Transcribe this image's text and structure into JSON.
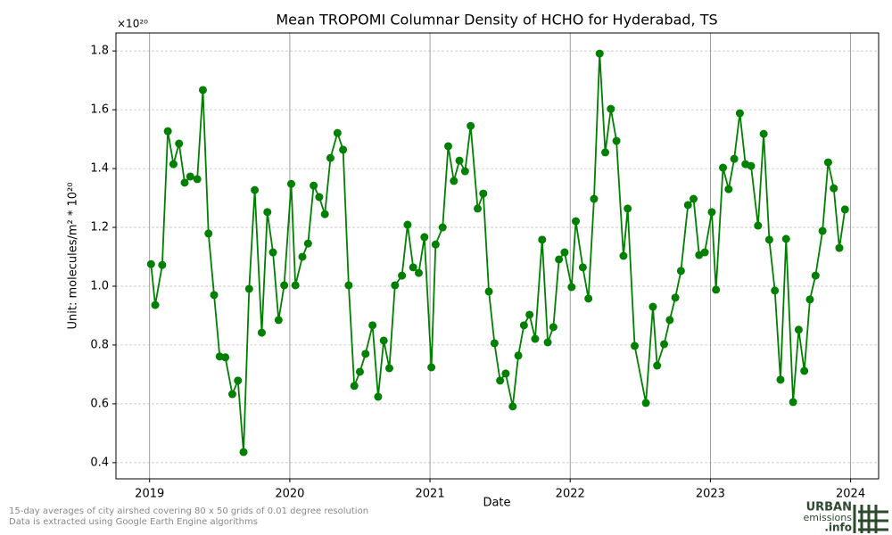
{
  "chart_data": {
    "type": "line",
    "title": "Mean TROPOMI Columnar Density of HCHO for Hyderabad, TS",
    "x_label": "Date",
    "y_label": "Unit: molecules/m² * 10²⁰",
    "y_offset_label": "×10²⁰",
    "footnote": [
      "15-day averages of city airshed covering 80 x 50 grids of 0.01 degree resolution",
      "Data is extracted using Google Earth Engine algorithms"
    ],
    "logo": [
      "URBAN",
      "emissions",
      ".info"
    ],
    "grid": true,
    "xlim": [
      2018.76,
      2024.2
    ],
    "xticks": [
      2019,
      2020,
      2021,
      2022,
      2023,
      2024
    ],
    "ylim": [
      0.345,
      1.861
    ],
    "yticks": [
      0.4,
      0.6,
      0.8,
      1.0,
      1.2,
      1.4,
      1.6,
      1.8
    ],
    "x": [
      2019.01,
      2019.04,
      2019.09,
      2019.13,
      2019.17,
      2019.21,
      2019.25,
      2019.29,
      2019.34,
      2019.38,
      2019.42,
      2019.46,
      2019.5,
      2019.54,
      2019.59,
      2019.63,
      2019.67,
      2019.71,
      2019.75,
      2019.8,
      2019.84,
      2019.88,
      2019.92,
      2019.96,
      2020.01,
      2020.04,
      2020.09,
      2020.13,
      2020.17,
      2020.21,
      2020.25,
      2020.29,
      2020.34,
      2020.38,
      2020.42,
      2020.46,
      2020.5,
      2020.54,
      2020.59,
      2020.63,
      2020.67,
      2020.71,
      2020.75,
      2020.8,
      2020.84,
      2020.88,
      2020.92,
      2020.96,
      2021.01,
      2021.04,
      2021.09,
      2021.13,
      2021.17,
      2021.21,
      2021.25,
      2021.29,
      2021.34,
      2021.38,
      2021.42,
      2021.46,
      2021.5,
      2021.54,
      2021.59,
      2021.63,
      2021.67,
      2021.71,
      2021.75,
      2021.8,
      2021.84,
      2021.88,
      2021.92,
      2021.96,
      2022.01,
      2022.04,
      2022.09,
      2022.13,
      2022.17,
      2022.21,
      2022.25,
      2022.29,
      2022.33,
      2022.38,
      2022.41,
      2022.46,
      2022.54,
      2022.59,
      2022.62,
      2022.67,
      2022.71,
      2022.75,
      2022.79,
      2022.84,
      2022.88,
      2022.92,
      2022.96,
      2023.01,
      2023.04,
      2023.09,
      2023.13,
      2023.17,
      2023.21,
      2023.25,
      2023.29,
      2023.34,
      2023.38,
      2023.42,
      2023.46,
      2023.5,
      2023.54,
      2023.59,
      2023.63,
      2023.67,
      2023.71,
      2023.75,
      2023.8,
      2023.84,
      2023.88,
      2023.92,
      2023.96
    ],
    "series": [
      {
        "name": "HCHO",
        "color": "#008000",
        "values": [
          1.075,
          0.936,
          1.072,
          1.527,
          1.415,
          1.485,
          1.352,
          1.373,
          1.364,
          1.667,
          1.179,
          0.97,
          0.761,
          0.758,
          0.633,
          0.679,
          0.436,
          0.991,
          1.327,
          0.842,
          1.252,
          1.115,
          0.885,
          1.003,
          1.348,
          1.003,
          1.1,
          1.145,
          1.342,
          1.303,
          1.245,
          1.436,
          1.521,
          1.464,
          1.003,
          0.661,
          0.709,
          0.77,
          0.867,
          0.624,
          0.815,
          0.721,
          1.003,
          1.036,
          1.209,
          1.064,
          1.045,
          1.167,
          0.724,
          1.142,
          1.2,
          1.476,
          1.358,
          1.427,
          1.391,
          1.545,
          1.264,
          1.315,
          0.982,
          0.806,
          0.679,
          0.703,
          0.591,
          0.764,
          0.867,
          0.903,
          0.821,
          1.158,
          0.809,
          0.861,
          1.091,
          1.115,
          0.997,
          1.221,
          1.064,
          0.958,
          1.297,
          1.791,
          1.455,
          1.603,
          1.494,
          1.103,
          1.264,
          0.797,
          0.603,
          0.93,
          0.73,
          0.803,
          0.885,
          0.961,
          1.052,
          1.276,
          1.297,
          1.106,
          1.115,
          1.252,
          0.988,
          1.403,
          1.33,
          1.433,
          1.588,
          1.415,
          1.409,
          1.206,
          1.518,
          1.158,
          0.985,
          0.682,
          1.161,
          0.606,
          0.852,
          0.712,
          0.955,
          1.036,
          1.188,
          1.421,
          1.333,
          1.13,
          1.261
        ]
      }
    ]
  }
}
